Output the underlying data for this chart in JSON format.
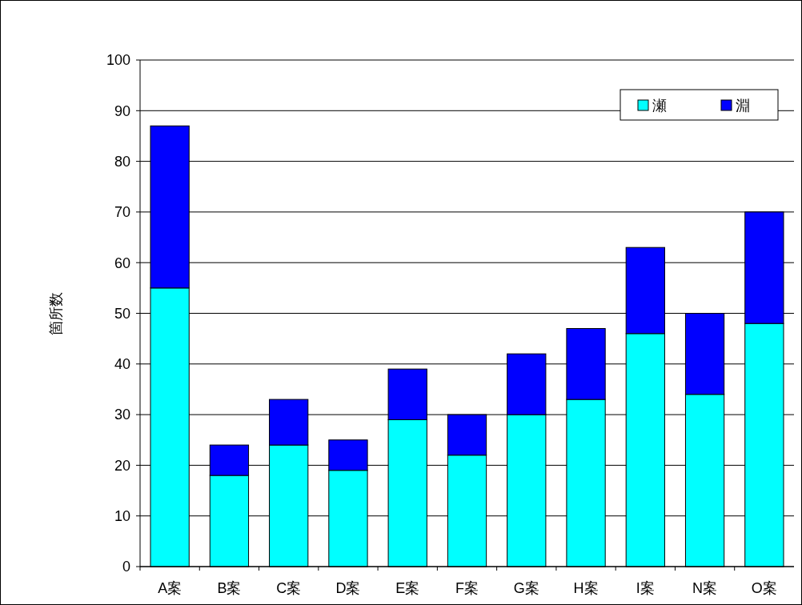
{
  "chart_data": {
    "type": "bar",
    "stacked": true,
    "ylabel": "箇所数",
    "categories": [
      "A案",
      "B案",
      "C案",
      "D案",
      "E案",
      "F案",
      "G案",
      "H案",
      "I案",
      "N案",
      "O案"
    ],
    "series": [
      {
        "name": "瀬",
        "color": "#00ffff",
        "values": [
          55,
          18,
          24,
          19,
          29,
          22,
          30,
          33,
          46,
          34,
          48
        ]
      },
      {
        "name": "淵",
        "color": "#0000ff",
        "values": [
          32,
          6,
          9,
          6,
          10,
          8,
          12,
          14,
          17,
          16,
          22
        ]
      }
    ],
    "ylim": [
      0,
      100
    ],
    "yticks": [
      0,
      10,
      20,
      30,
      40,
      50,
      60,
      70,
      80,
      90,
      100
    ],
    "grid": "y",
    "legend": "top right"
  }
}
